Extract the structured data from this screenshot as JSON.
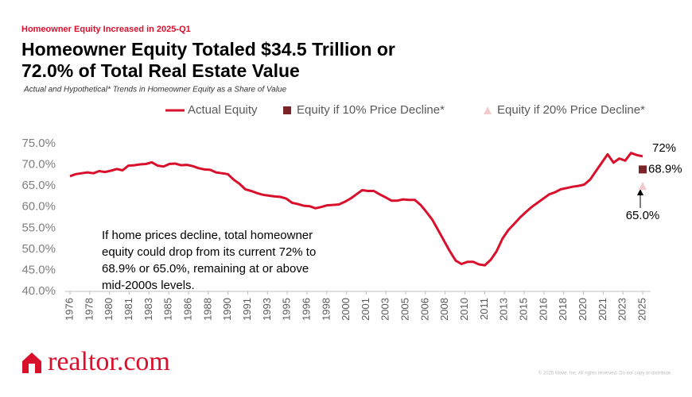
{
  "kicker": "Homeowner Equity Increased in 2025-Q1",
  "logo": "realtor.com",
  "copyright": "© 2025 Move, Inc. All rights reserved. Do not copy or distribute.",
  "chart_data": {
    "type": "line",
    "title": [
      "Homeowner Equity Totaled $34.5 Trillion or",
      "72.0% of Total Real Estate Value"
    ],
    "subtitle": "Actual and Hypothetical* Trends in Homeowner Equity as a Share of Value",
    "annotation": [
      "If home prices decline, total homeowner",
      "equity could drop from its current 72% to",
      "68.9% or 65.0%, remaining at or above",
      "mid-2000s levels."
    ],
    "xlim": [
      1976,
      2025
    ],
    "xticks": [
      {
        "value": 1976,
        "label": "1976"
      },
      {
        "value": 1977.69,
        "label": "1978"
      },
      {
        "value": 1979.38,
        "label": "1980"
      },
      {
        "value": 1981.07,
        "label": "1981"
      },
      {
        "value": 1982.76,
        "label": "1983"
      },
      {
        "value": 1984.45,
        "label": "1985"
      },
      {
        "value": 1986.14,
        "label": "1986"
      },
      {
        "value": 1987.83,
        "label": "1988"
      },
      {
        "value": 1989.52,
        "label": "1990"
      },
      {
        "value": 1991.21,
        "label": "1991"
      },
      {
        "value": 1992.9,
        "label": "1993"
      },
      {
        "value": 1994.59,
        "label": "1995"
      },
      {
        "value": 1996.28,
        "label": "1996"
      },
      {
        "value": 1997.97,
        "label": "1998"
      },
      {
        "value": 1999.66,
        "label": "2000"
      },
      {
        "value": 2001.34,
        "label": "2001"
      },
      {
        "value": 2003.03,
        "label": "2003"
      },
      {
        "value": 2004.72,
        "label": "2005"
      },
      {
        "value": 2006.41,
        "label": "2006"
      },
      {
        "value": 2008.1,
        "label": "2008"
      },
      {
        "value": 2009.79,
        "label": "2010"
      },
      {
        "value": 2011.48,
        "label": "2011"
      },
      {
        "value": 2013.17,
        "label": "2013"
      },
      {
        "value": 2014.86,
        "label": "2015"
      },
      {
        "value": 2016.55,
        "label": "2016"
      },
      {
        "value": 2018.24,
        "label": "2018"
      },
      {
        "value": 2019.93,
        "label": "2020"
      },
      {
        "value": 2021.62,
        "label": "2021"
      },
      {
        "value": 2023.31,
        "label": "2023"
      },
      {
        "value": 2025,
        "label": "2025"
      }
    ],
    "ylim": [
      40,
      75
    ],
    "yticks": [
      {
        "value": 40,
        "label": "40.0%"
      },
      {
        "value": 45,
        "label": "45.0%"
      },
      {
        "value": 50,
        "label": "50.0%"
      },
      {
        "value": 55,
        "label": "55.0%"
      },
      {
        "value": 60,
        "label": "60.0%"
      },
      {
        "value": 65,
        "label": "65.0%"
      },
      {
        "value": 70,
        "label": "70.0%"
      },
      {
        "value": 75,
        "label": "75.0%"
      }
    ],
    "grid": false,
    "legend": "top",
    "series": [
      {
        "name": "Actual Equity",
        "color": "#d9102c",
        "marker": "line",
        "x": [
          1976,
          1976.5,
          1977,
          1977.5,
          1978,
          1978.5,
          1979,
          1979.5,
          1980,
          1980.5,
          1981,
          1981.5,
          1982,
          1982.5,
          1983,
          1983.5,
          1984,
          1984.5,
          1985,
          1985.5,
          1986,
          1986.5,
          1987,
          1987.5,
          1988,
          1988.5,
          1989,
          1989.5,
          1990,
          1990.5,
          1991,
          1991.5,
          1992,
          1992.5,
          1993,
          1993.5,
          1994,
          1994.5,
          1995,
          1995.5,
          1996,
          1996.5,
          1997,
          1997.5,
          1998,
          1998.5,
          1999,
          1999.5,
          2000,
          2000.5,
          2001,
          2001.5,
          2002,
          2002.5,
          2003,
          2003.5,
          2004,
          2004.5,
          2005,
          2005.5,
          2006,
          2006.5,
          2007,
          2007.5,
          2008,
          2008.5,
          2009,
          2009.5,
          2010,
          2010.5,
          2011,
          2011.5,
          2012,
          2012.5,
          2013,
          2013.5,
          2014,
          2014.5,
          2015,
          2015.5,
          2016,
          2016.5,
          2017,
          2017.5,
          2018,
          2018.5,
          2019,
          2019.5,
          2020,
          2020.5,
          2021,
          2021.5,
          2022,
          2022.5,
          2023,
          2023.5,
          2024,
          2024.5,
          2025
        ],
        "values": [
          67.3,
          67.8,
          68.0,
          68.2,
          68.0,
          68.5,
          68.3,
          68.6,
          69.0,
          68.7,
          69.8,
          69.9,
          70.1,
          70.2,
          70.6,
          69.8,
          69.6,
          70.2,
          70.3,
          69.9,
          70.0,
          69.7,
          69.2,
          68.9,
          68.8,
          68.2,
          68.0,
          67.8,
          66.5,
          65.5,
          64.2,
          63.8,
          63.3,
          62.9,
          62.7,
          62.5,
          62.4,
          62.0,
          61.0,
          60.7,
          60.3,
          60.2,
          59.7,
          60.0,
          60.4,
          60.5,
          60.6,
          61.2,
          62.0,
          63.0,
          64.0,
          63.8,
          63.8,
          63.0,
          62.3,
          61.5,
          61.5,
          61.8,
          61.7,
          61.7,
          60.5,
          58.8,
          57.0,
          54.5,
          52.0,
          49.5,
          47.3,
          46.5,
          47.0,
          47.0,
          46.4,
          46.2,
          47.5,
          49.5,
          52.5,
          54.5,
          56.0,
          57.5,
          58.8,
          60.0,
          61.0,
          62.0,
          63.0,
          63.5,
          64.2,
          64.5,
          64.8,
          65.0,
          65.3,
          66.5,
          68.5,
          70.5,
          72.5,
          70.5,
          71.5,
          71.0,
          72.8,
          72.3,
          72.0
        ],
        "value_labels": [
          null,
          null,
          null,
          null,
          null,
          null,
          null,
          null,
          null,
          null,
          null,
          null,
          null,
          null,
          null,
          null,
          null,
          null,
          null,
          null,
          null,
          null,
          null,
          null,
          null,
          null,
          null,
          null,
          null,
          null,
          null,
          null,
          null,
          null,
          null,
          null,
          null,
          null,
          null,
          null,
          null,
          null,
          null,
          null,
          null,
          null,
          null,
          null,
          null,
          null,
          null,
          null,
          null,
          null,
          null,
          null,
          null,
          null,
          null,
          null,
          null,
          null,
          null,
          null,
          null,
          null,
          null,
          null,
          null,
          null,
          null,
          null,
          null,
          null,
          null,
          null,
          null,
          null,
          null,
          null,
          null,
          null,
          null,
          null,
          null,
          null,
          null,
          null,
          null,
          null,
          null,
          null,
          null,
          null,
          null,
          null,
          null,
          null,
          "72%"
        ]
      },
      {
        "name": "Equity if 10% Price Decline*",
        "color": "#7b2327",
        "marker": "square",
        "x": [
          2025
        ],
        "values": [
          68.9
        ],
        "value_labels": [
          "68.9%"
        ]
      },
      {
        "name": "Equity if 20% Price Decline*",
        "color": "#f2c9cd",
        "marker": "triangle",
        "x": [
          2025
        ],
        "values": [
          65.0
        ],
        "value_labels": [
          "65.0%"
        ]
      }
    ]
  }
}
